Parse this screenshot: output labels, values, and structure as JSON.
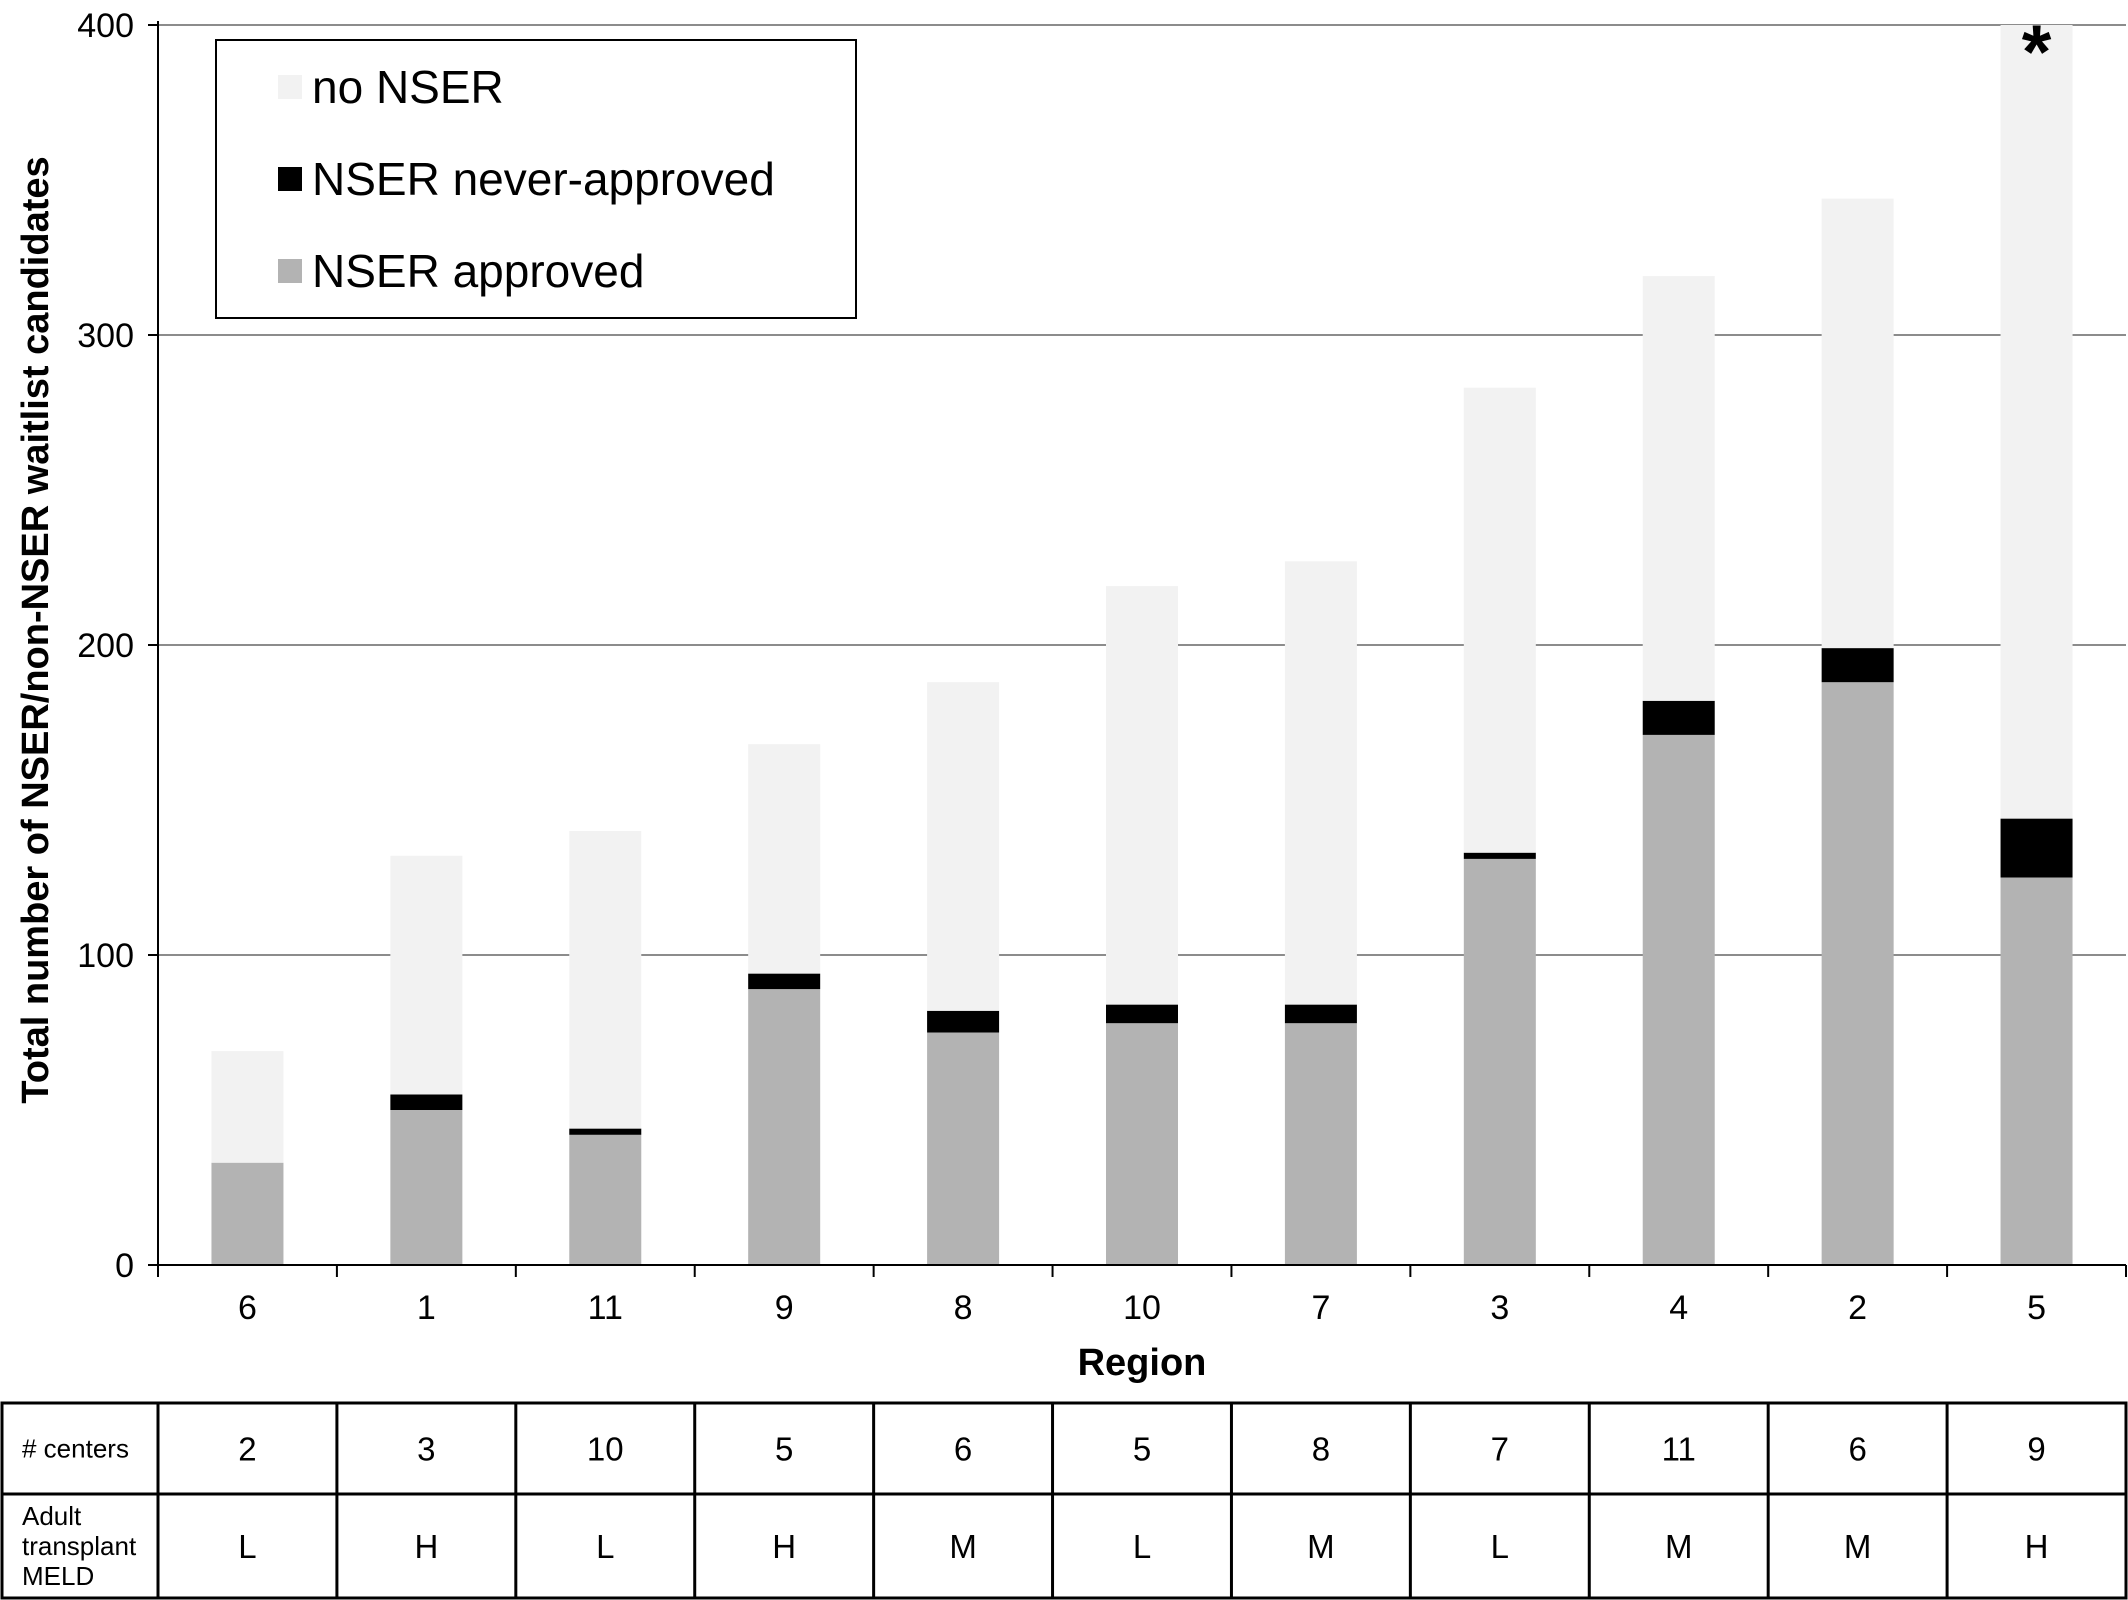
{
  "chart_data": {
    "type": "bar",
    "stacked": true,
    "title": "",
    "xlabel": "Region",
    "ylabel": "Total number of NSER/non-NSER waitlist candidates",
    "ylim": [
      0,
      400
    ],
    "yticks": [
      "0",
      "100",
      "200",
      "300",
      "400"
    ],
    "grid": true,
    "legend_position": "top-left",
    "categories": [
      "6",
      "1",
      "11",
      "9",
      "8",
      "10",
      "7",
      "3",
      "4",
      "2",
      "5"
    ],
    "series": [
      {
        "name": "NSER approved",
        "color": "#b3b3b3",
        "values": [
          33,
          50,
          42,
          89,
          75,
          78,
          78,
          131,
          171,
          188,
          125
        ]
      },
      {
        "name": "NSER never-approved",
        "color": "#000000",
        "values": [
          0,
          5,
          2,
          5,
          7,
          6,
          6,
          2,
          11,
          11,
          19
        ]
      },
      {
        "name": "no NSER",
        "color": "#f2f2f2",
        "values": [
          36,
          77,
          96,
          74,
          106,
          135,
          143,
          150,
          137,
          145,
          256
        ]
      }
    ],
    "legend_order": [
      "no NSER",
      "NSER never-approved",
      "NSER approved"
    ],
    "annotation": {
      "text": "*",
      "category": "5"
    },
    "table": {
      "rows": [
        {
          "label": [
            "# centers"
          ],
          "values": [
            "2",
            "3",
            "10",
            "5",
            "6",
            "5",
            "8",
            "7",
            "11",
            "6",
            "9"
          ]
        },
        {
          "label": [
            "Adult",
            "transplant",
            "MELD"
          ],
          "values": [
            "L",
            "H",
            "L",
            "H",
            "M",
            "L",
            "M",
            "L",
            "M",
            "M",
            "H"
          ]
        }
      ]
    }
  }
}
